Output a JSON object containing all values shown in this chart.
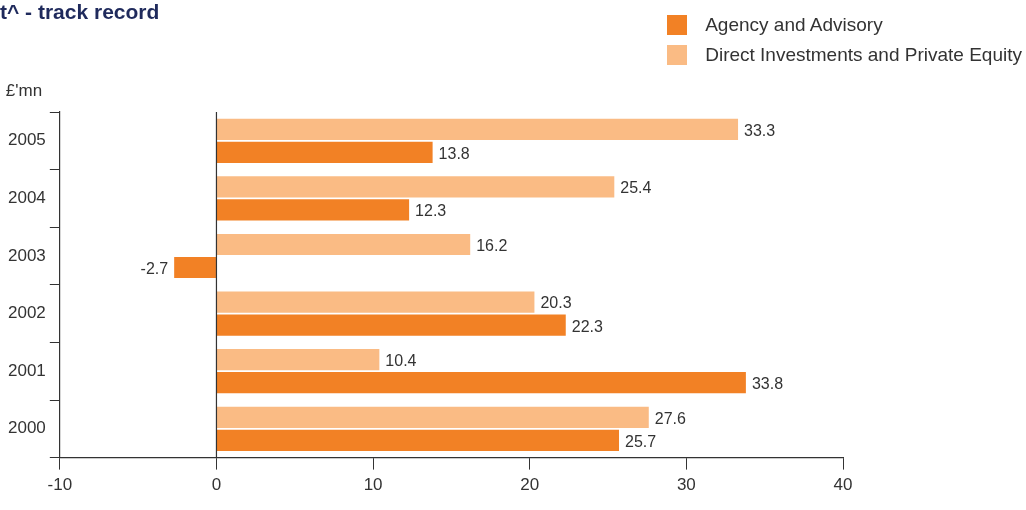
{
  "chart_data": {
    "type": "bar",
    "orientation": "horizontal",
    "title": "t^ - track record",
    "ylabel": "£'mn",
    "categories": [
      "2005",
      "2004",
      "2003",
      "2002",
      "2001",
      "2000"
    ],
    "series": [
      {
        "name": "Agency and Advisory",
        "color": "#f28125",
        "values": [
          13.8,
          12.3,
          -2.7,
          22.3,
          33.8,
          25.7
        ]
      },
      {
        "name": "Direct Investments and Private Equity",
        "color": "#fabb84",
        "values": [
          33.3,
          25.4,
          16.2,
          20.3,
          10.4,
          27.6
        ]
      }
    ],
    "xlim": [
      -10,
      40
    ],
    "xticks": [
      -10,
      0,
      10,
      20,
      30,
      40
    ],
    "ref_lines": [
      {
        "axis": "x",
        "value": 0,
        "color": "#333333"
      }
    ],
    "data_labels": true,
    "grid": false,
    "legend": "top right"
  }
}
